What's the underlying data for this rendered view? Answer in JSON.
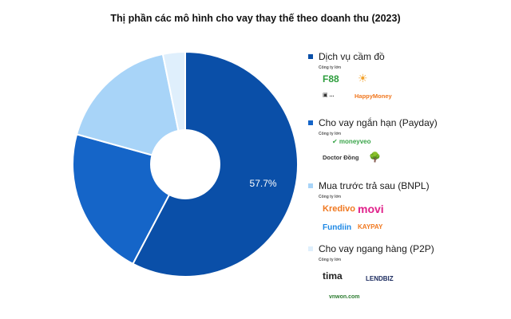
{
  "chart_data": {
    "type": "pie",
    "title": "Thị phần các mô hình cho vay thay thế theo doanh thu (2023)",
    "style": "donut",
    "slices": [
      {
        "label": "Dịch vụ cầm đồ",
        "value": 57.7,
        "color": "#0a4fa8",
        "data_label": "57.7%"
      },
      {
        "label": "Cho vay ngắn hạn (Payday)",
        "value": 21.6,
        "color": "#1565c8",
        "data_label": ""
      },
      {
        "label": "Mua trước trả sau (BNPL)",
        "value": 17.5,
        "color": "#a8d4f8",
        "data_label": ""
      },
      {
        "label": "Cho vay ngang hàng (P2P)",
        "value": 3.2,
        "color": "#dfeffc",
        "data_label": ""
      }
    ],
    "legend_position": "right"
  },
  "legend": {
    "sub_label": "Công ty lớn",
    "groups": [
      {
        "logos": [
          {
            "text": "F88",
            "color": "#2e9e3e"
          },
          {
            "text": "☀",
            "color": "#f2a22c"
          },
          {
            "text": "▣ ...",
            "color": "#333333"
          },
          {
            "text": "HappyMoney",
            "color": "#f07820"
          }
        ]
      },
      {
        "logos": [
          {
            "text": "✔ moneyveo",
            "color": "#3aa54a"
          },
          {
            "text": "Doctor Đồng",
            "color": "#333333"
          },
          {
            "text": "🌳",
            "color": "#b8860b"
          }
        ]
      },
      {
        "logos": [
          {
            "text": "Kredivo",
            "color": "#f07820"
          },
          {
            "text": "movi",
            "color": "#e0218a"
          },
          {
            "text": "Fundiin",
            "color": "#1e88e5"
          },
          {
            "text": "KAYPAY",
            "color": "#f07820"
          }
        ]
      },
      {
        "logos": [
          {
            "text": "tima",
            "color": "#222222"
          },
          {
            "text": "LENDBIZ",
            "color": "#1a2a5e"
          },
          {
            "text": "vnwon.com",
            "color": "#2e7d32"
          }
        ]
      }
    ]
  }
}
